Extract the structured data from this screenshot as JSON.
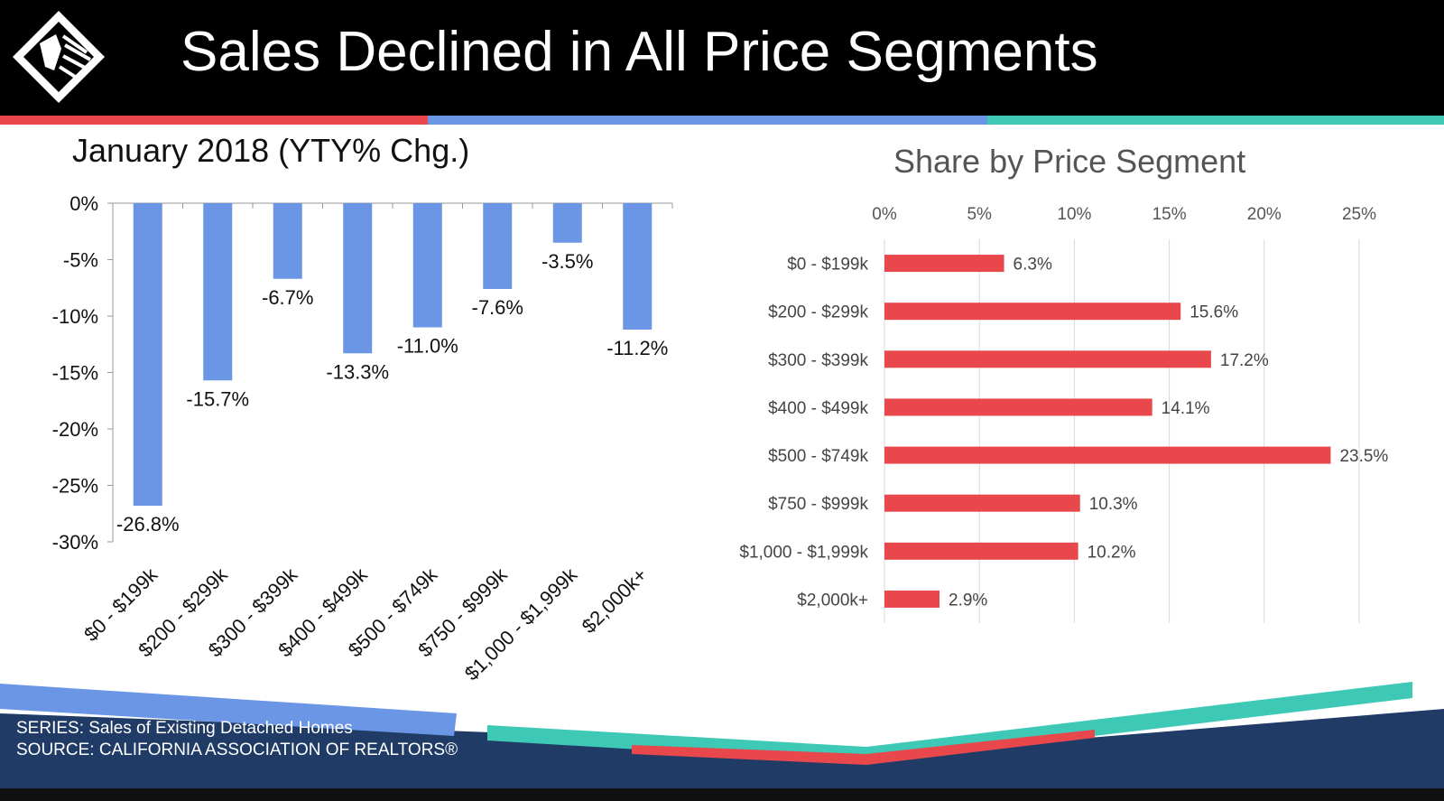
{
  "slide": {
    "title": "Sales Declined in All Price Segments",
    "footer_series": "SERIES: Sales of Existing Detached Homes",
    "footer_source": "SOURCE:  CALIFORNIA ASSOCIATION OF REALTORS®"
  },
  "colors": {
    "header_bg": "#000000",
    "stripe_red": "#e8474c",
    "stripe_blue": "#6b96e6",
    "stripe_teal": "#3dc9b6",
    "footer_navy": "#1f3b66",
    "bar_blue": "#6b96e6",
    "bar_red": "#e8474c"
  },
  "chart_data": [
    {
      "type": "bar",
      "orientation": "vertical",
      "title": "January 2018 (YTY% Chg.)",
      "categories": [
        "$0 - $199k",
        "$200 - $299k",
        "$300 - $399k",
        "$400 - $499k",
        "$500 - $749k",
        "$750 - $999k",
        "$1,000 - $1,999k",
        "$2,000k+"
      ],
      "values": [
        -26.8,
        -15.7,
        -6.7,
        -13.3,
        -11.0,
        -7.6,
        -3.5,
        -11.2
      ],
      "data_labels": [
        "-26.8%",
        "-15.7%",
        "-6.7%",
        "-13.3%",
        "-11.0%",
        "-7.6%",
        "-3.5%",
        "-11.2%"
      ],
      "ylim": [
        -30,
        0
      ],
      "yticks": [
        0,
        -5,
        -10,
        -15,
        -20,
        -25,
        -30
      ],
      "ytick_labels": [
        "0%",
        "-5%",
        "-10%",
        "-15%",
        "-20%",
        "-25%",
        "-30%"
      ],
      "grid": false,
      "color": "#6b96e6"
    },
    {
      "type": "bar",
      "orientation": "horizontal",
      "title": "Share by Price Segment",
      "categories": [
        "$0 - $199k",
        "$200 - $299k",
        "$300 - $399k",
        "$400 - $499k",
        "$500 - $749k",
        "$750 - $999k",
        "$1,000 - $1,999k",
        "$2,000k+"
      ],
      "values": [
        6.3,
        15.6,
        17.2,
        14.1,
        23.5,
        10.3,
        10.2,
        2.9
      ],
      "data_labels": [
        "6.3%",
        "15.6%",
        "17.2%",
        "14.1%",
        "23.5%",
        "10.3%",
        "10.2%",
        "2.9%"
      ],
      "xlim": [
        0,
        25
      ],
      "xticks": [
        0,
        5,
        10,
        15,
        20,
        25
      ],
      "xtick_labels": [
        "0%",
        "5%",
        "10%",
        "15%",
        "20%",
        "25%"
      ],
      "grid": true,
      "color": "#e8474c"
    }
  ]
}
